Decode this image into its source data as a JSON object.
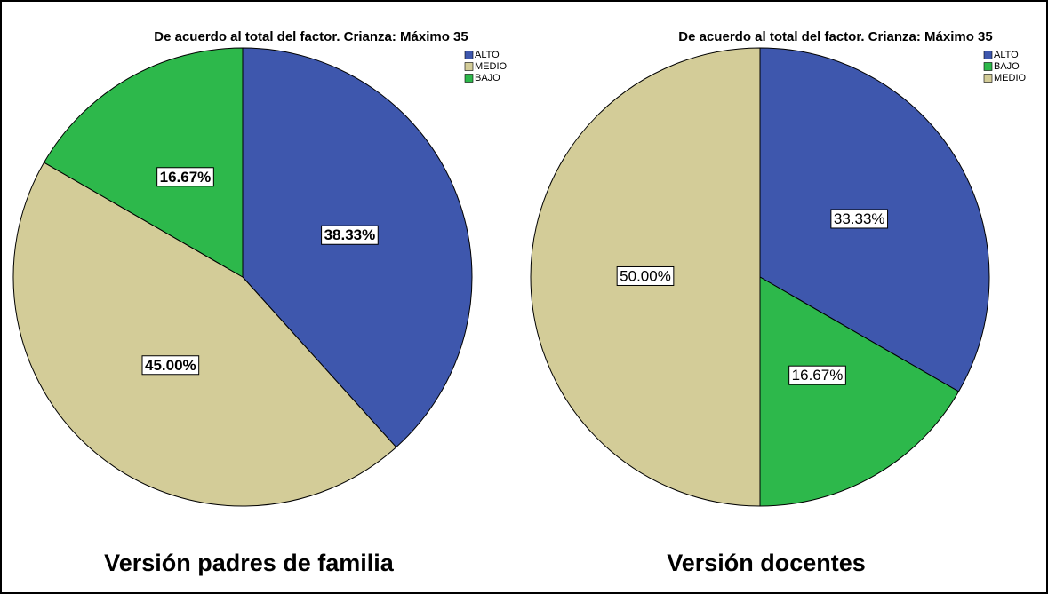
{
  "chart_data": [
    {
      "type": "pie",
      "title": "De acuerdo al total del factor. Crianza: Máximo 35",
      "categories": [
        "ALTO",
        "MEDIO",
        "BAJO"
      ],
      "values": [
        38.33,
        45.0,
        16.67
      ],
      "value_labels": [
        "38.33%",
        "45.00%",
        "16.67%"
      ],
      "colors": [
        "#3e57ad",
        "#d3cc98",
        "#2db84b"
      ],
      "caption": "Versión padres de familia"
    },
    {
      "type": "pie",
      "title": "De acuerdo al total del factor. Crianza: Máximo 35",
      "categories": [
        "ALTO",
        "BAJO",
        "MEDIO"
      ],
      "values": [
        33.33,
        16.67,
        50.0
      ],
      "value_labels": [
        "33.33%",
        "16.67%",
        "50.00%"
      ],
      "colors": [
        "#3e57ad",
        "#2db84b",
        "#d3cc98"
      ],
      "caption": "Versión docentes"
    }
  ]
}
